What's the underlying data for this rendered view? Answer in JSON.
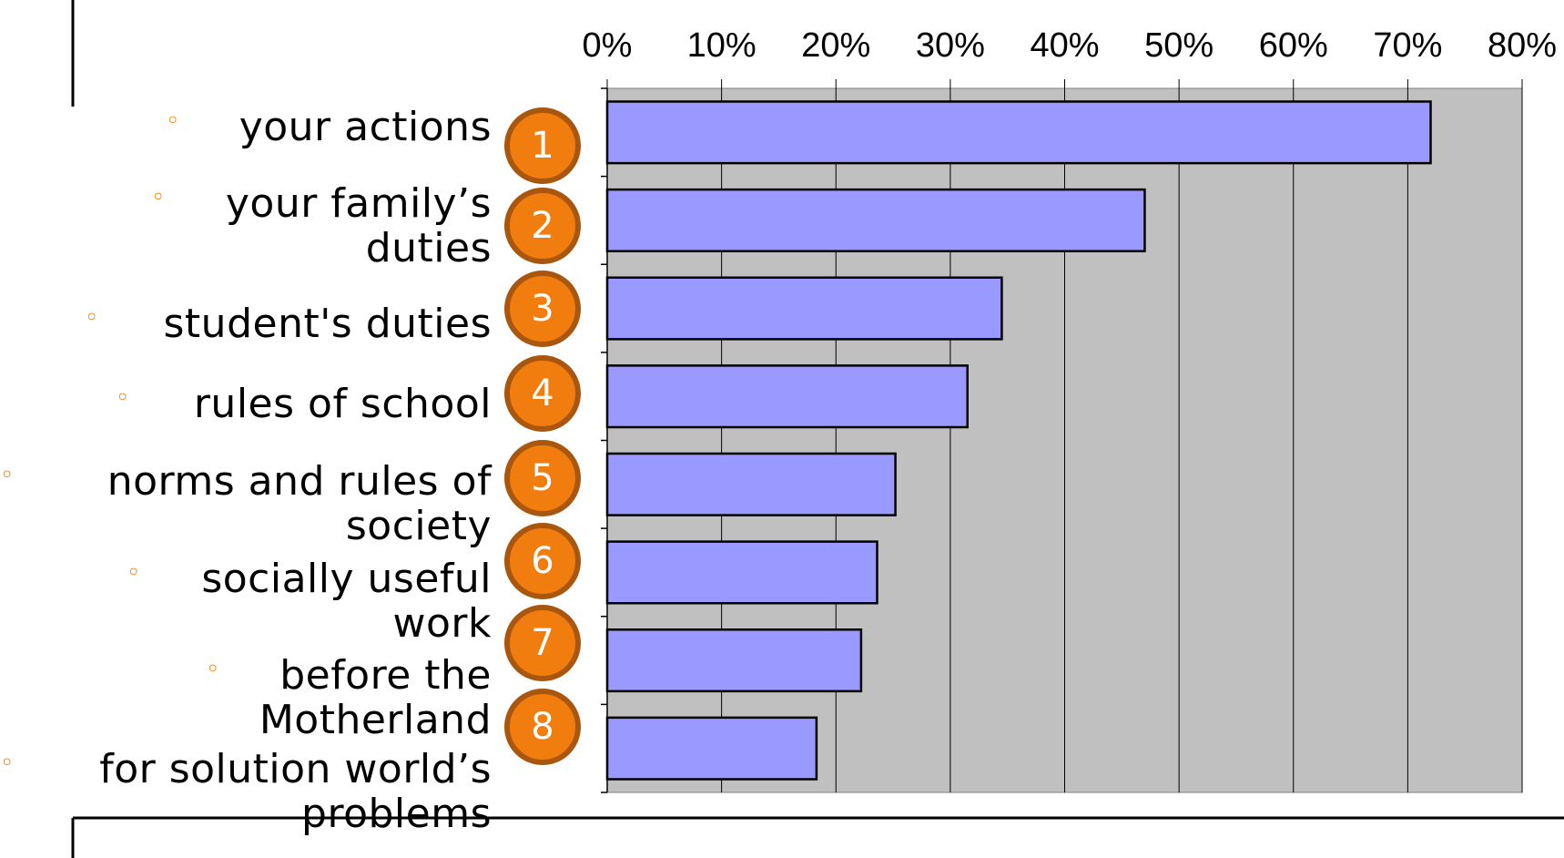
{
  "chart_data": {
    "type": "bar",
    "orientation": "horizontal",
    "categories": [
      "your actions",
      "your family’s duties",
      "student's duties",
      "rules of school",
      "norms and rules of society",
      "socially useful work",
      "before the Motherland",
      "for solution world’s problems"
    ],
    "values": [
      72,
      47,
      34.5,
      31.5,
      25.2,
      23.6,
      22.2,
      18.3
    ],
    "ranks": [
      "1",
      "2",
      "3",
      "4",
      "5",
      "6",
      "7",
      "8"
    ],
    "xlim": [
      0,
      80
    ],
    "xticks": [
      "0%",
      "10%",
      "20%",
      "30%",
      "40%",
      "50%",
      "60%",
      "70%",
      "80%"
    ],
    "xaxis_position": "top",
    "grid": true,
    "colors": {
      "bar": "#9999FF",
      "plot_background": "#C0C0C0",
      "badge": "#F07D0E",
      "badge_border": "#A9560F",
      "bullet": "#E87A0C"
    }
  }
}
